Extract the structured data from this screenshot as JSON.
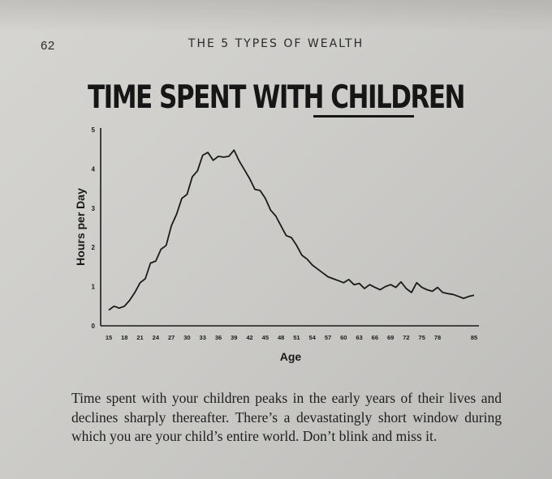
{
  "page": {
    "page_number": "62",
    "running_head": "THE 5 TYPES OF WEALTH",
    "caption": "Time spent with your children peaks in the early years of their lives and declines sharply thereafter. There’s a devastatingly short window during which you are your child’s entire world. Don’t blink and miss it."
  },
  "chart_data": {
    "type": "line",
    "title_parts": [
      "TIME SPENT WITH ",
      "CHILDREN"
    ],
    "title_underlined_word": "CHILDREN",
    "xlabel": "Age",
    "ylabel": "Hours per Day",
    "xlim": [
      15,
      85
    ],
    "ylim": [
      0,
      5
    ],
    "x_ticks": [
      15,
      18,
      21,
      24,
      27,
      30,
      33,
      36,
      39,
      42,
      45,
      48,
      51,
      54,
      57,
      60,
      63,
      66,
      69,
      72,
      75,
      78,
      85
    ],
    "y_ticks": [
      0,
      1,
      2,
      3,
      4,
      5
    ],
    "grid": false,
    "legend": "none",
    "line_color": "#1a1a1a",
    "series": [
      {
        "x": [
          15,
          16,
          17,
          18,
          19,
          20,
          21,
          22,
          23,
          24,
          25,
          26,
          27,
          28,
          29,
          30,
          31,
          32,
          33,
          34,
          35,
          36,
          37,
          38,
          39,
          40,
          41,
          42,
          43,
          44,
          45,
          46,
          47,
          48,
          49,
          50,
          51,
          52,
          53,
          54,
          55,
          56,
          57,
          58,
          59,
          60,
          61,
          62,
          63,
          64,
          65,
          66,
          67,
          68,
          69,
          70,
          71,
          72,
          73,
          74,
          75,
          76,
          77,
          78,
          79,
          80,
          81,
          82,
          83,
          84,
          85
        ],
        "values": [
          0.4,
          0.5,
          0.45,
          0.5,
          0.65,
          0.85,
          1.1,
          1.2,
          1.6,
          1.65,
          1.95,
          2.05,
          2.55,
          2.85,
          3.25,
          3.35,
          3.8,
          3.95,
          4.35,
          4.42,
          4.22,
          4.32,
          4.3,
          4.32,
          4.48,
          4.2,
          3.98,
          3.75,
          3.48,
          3.45,
          3.25,
          2.95,
          2.8,
          2.55,
          2.3,
          2.25,
          2.05,
          1.8,
          1.7,
          1.55,
          1.45,
          1.35,
          1.25,
          1.2,
          1.15,
          1.1,
          1.18,
          1.05,
          1.08,
          0.95,
          1.05,
          0.98,
          0.92,
          1.0,
          1.05,
          0.98,
          1.12,
          0.95,
          0.85,
          1.1,
          0.98,
          0.92,
          0.88,
          0.98,
          0.85,
          0.82,
          0.8,
          0.75,
          0.7,
          0.75,
          0.78
        ]
      }
    ]
  }
}
